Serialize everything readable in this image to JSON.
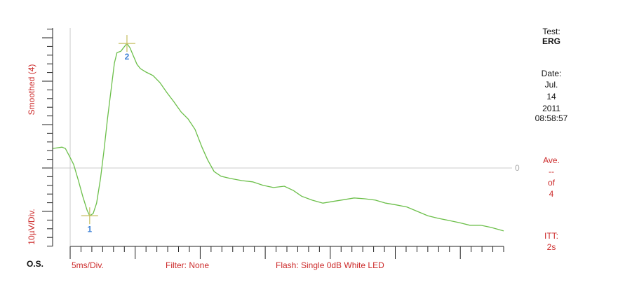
{
  "chart_data": {
    "type": "line",
    "y_label": "Smoothed (4)",
    "y_scale_label": "10µV/Div.",
    "eye_label": "O.S.",
    "x_scale_label": "5ms/Div.",
    "filter_label": "Filter: None",
    "flash_label": "Flash: Single 0dB White LED",
    "baseline": 0,
    "xlim": [
      -4,
      100
    ],
    "ylim": [
      -18,
      32
    ],
    "xticks": [
      0,
      2.5,
      5,
      7.5,
      10,
      12.5,
      15,
      17.5,
      20,
      22.5,
      25,
      27.5,
      30,
      32.5,
      35,
      37.5,
      40,
      42.5,
      45,
      47.5,
      50,
      52.5,
      55,
      57.5,
      60,
      62.5,
      65,
      67.5,
      70,
      72.5,
      75,
      77.5,
      80,
      82.5,
      85,
      87.5,
      90,
      92.5,
      95,
      97.5,
      100
    ],
    "yticks": [
      -18,
      -16,
      -14,
      -12,
      -10,
      -8,
      -6,
      -4,
      -2,
      0,
      2,
      4,
      6,
      8,
      10,
      12,
      14,
      16,
      18,
      20,
      22,
      24,
      26,
      28,
      30,
      32
    ],
    "x": [
      -4.0,
      -1.9,
      -1.1,
      0,
      0.8,
      1.9,
      2.9,
      3.9,
      4.5,
      5.3,
      6.1,
      7.0,
      7.8,
      8.6,
      9.4,
      10.2,
      10.8,
      11.7,
      12.3,
      13.1,
      13.8,
      14.6,
      15.4,
      16.2,
      17.5,
      19.1,
      20.7,
      22.3,
      23.9,
      25.6,
      27.2,
      28.8,
      30.4,
      31.7,
      33.2,
      34.8,
      36.9,
      39.6,
      42.1,
      44.5,
      46.9,
      49.4,
      51.5,
      53.4,
      55.8,
      58.3,
      60.7,
      63.1,
      65.5,
      68.0,
      70.4,
      72.8,
      75.2,
      77.7,
      80.1,
      82.5,
      84.9,
      87.4,
      89.8,
      92.2,
      94.7,
      97.1,
      100.0
    ],
    "series": [
      {
        "color": "#6cbf4a",
        "values": [
          4.5,
          4.8,
          4.5,
          2.4,
          0.8,
          -2.9,
          -6.5,
          -9.7,
          -11.0,
          -10.5,
          -8.1,
          -2.4,
          4.0,
          11.3,
          17.7,
          24.2,
          26.6,
          26.9,
          27.7,
          28.7,
          27.7,
          25.8,
          23.9,
          22.9,
          22.1,
          21.3,
          19.7,
          17.4,
          15.3,
          12.9,
          11.3,
          8.9,
          4.8,
          1.9,
          -0.8,
          -1.9,
          -2.4,
          -2.9,
          -3.2,
          -4.0,
          -4.5,
          -4.2,
          -5.2,
          -6.5,
          -7.4,
          -8.1,
          -7.7,
          -7.3,
          -6.9,
          -7.1,
          -7.4,
          -8.1,
          -8.5,
          -9.0,
          -10.0,
          -11.0,
          -11.6,
          -12.1,
          -12.6,
          -13.2,
          -13.2,
          -13.7,
          -14.5
        ]
      }
    ],
    "markers": [
      {
        "label": "1",
        "x": 4.5,
        "y": -11.0
      },
      {
        "label": "2",
        "x": 13.1,
        "y": 28.7
      }
    ],
    "info": {
      "test_label": "Test:",
      "test": "ERG",
      "date_label": "Date:",
      "month": "Jul.",
      "day": "14",
      "year": "2011",
      "time": "08:58:57",
      "ave_label": "Ave.",
      "ave": "--",
      "of_label": "of",
      "count": "4",
      "itt_label": "ITT:",
      "itt": "2s"
    }
  }
}
